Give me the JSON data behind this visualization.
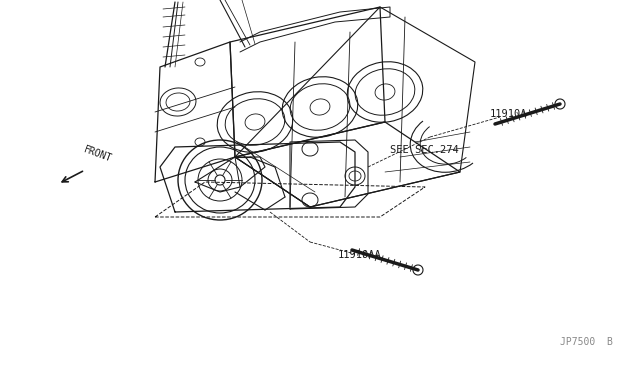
{
  "bg_color": "#ffffff",
  "line_color": "#1a1a1a",
  "labels": {
    "front_text": "FRONT",
    "see_sec": "SEE SEC.274",
    "part1": "11910A",
    "part2": "11910AA",
    "diagram_num": "JP7500  B"
  },
  "fig_width": 6.4,
  "fig_height": 3.72,
  "dpi": 100
}
